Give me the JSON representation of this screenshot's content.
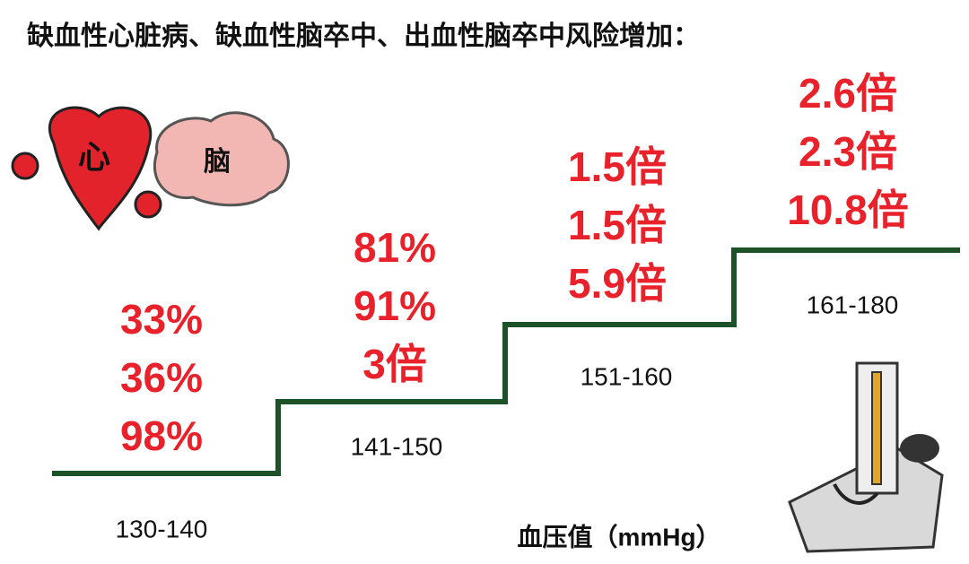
{
  "header": {
    "title": "缺血性心脏病、缺血性脑卒中、出血性脑卒中风险增加："
  },
  "icons": {
    "heart": "心",
    "brain": "脑"
  },
  "steps": [
    {
      "range": "130-140",
      "labels": [
        "33%",
        "36%",
        "98%"
      ]
    },
    {
      "range": "141-150",
      "labels": [
        "81%",
        "91%",
        "3倍"
      ]
    },
    {
      "range": "151-160",
      "labels": [
        "1.5倍",
        "1.5倍",
        "5.9倍"
      ]
    },
    {
      "range": "161-180",
      "labels": [
        "2.6倍",
        "2.3倍",
        "10.8倍"
      ]
    }
  ],
  "axis_label": "血压值（mmHg）"
}
